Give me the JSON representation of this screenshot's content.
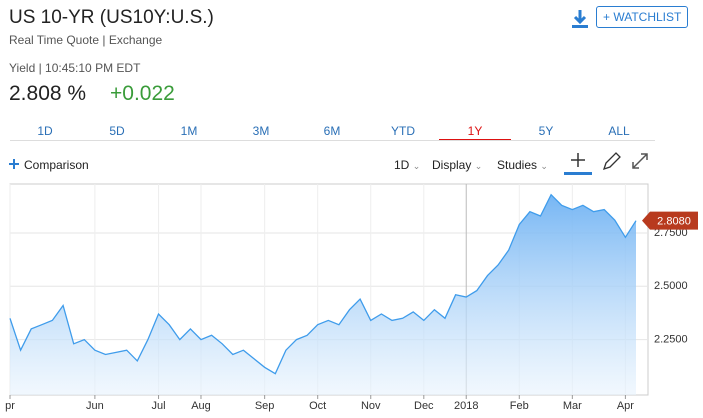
{
  "header": {
    "title": "US 10-YR (US10Y:U.S.)",
    "subtitle": "Real Time Quote | Exchange",
    "watchlist": "+ WATCHLIST"
  },
  "quote": {
    "label": "Yield | 10:45:10 PM EDT",
    "price": "2.808 %",
    "change": "+0.022"
  },
  "tabs": [
    {
      "label": "1D",
      "active": false
    },
    {
      "label": "5D",
      "active": false
    },
    {
      "label": "1M",
      "active": false
    },
    {
      "label": "3M",
      "active": false
    },
    {
      "label": "6M",
      "active": false
    },
    {
      "label": "YTD",
      "active": false
    },
    {
      "label": "1Y",
      "active": true
    },
    {
      "label": "5Y",
      "active": false
    },
    {
      "label": "ALL",
      "active": false
    }
  ],
  "toolbar": {
    "comparison": "Comparison",
    "interval": "1D",
    "display": "Display",
    "studies": "Studies"
  },
  "chart_data": {
    "type": "area",
    "color": "#3f9ceb",
    "grid": true,
    "categories": [
      "pr",
      null,
      null,
      null,
      null,
      null,
      null,
      null,
      "Jun",
      null,
      null,
      null,
      null,
      null,
      "Jul",
      null,
      null,
      null,
      "Aug",
      null,
      null,
      null,
      null,
      null,
      "Sep",
      null,
      null,
      null,
      null,
      "Oct",
      null,
      null,
      null,
      null,
      "Nov",
      null,
      null,
      null,
      null,
      "Dec",
      null,
      null,
      null,
      "2018",
      null,
      null,
      null,
      null,
      "Feb",
      null,
      null,
      null,
      null,
      "Mar",
      null,
      null,
      null,
      null,
      "Apr",
      null
    ],
    "values": [
      2.35,
      2.2,
      2.3,
      2.32,
      2.34,
      2.41,
      2.23,
      2.25,
      2.2,
      2.18,
      2.19,
      2.2,
      2.15,
      2.25,
      2.37,
      2.32,
      2.25,
      2.3,
      2.25,
      2.27,
      2.23,
      2.18,
      2.2,
      2.16,
      2.12,
      2.09,
      2.2,
      2.25,
      2.27,
      2.32,
      2.34,
      2.32,
      2.39,
      2.44,
      2.34,
      2.37,
      2.34,
      2.35,
      2.38,
      2.34,
      2.39,
      2.35,
      2.46,
      2.45,
      2.48,
      2.55,
      2.6,
      2.67,
      2.79,
      2.85,
      2.83,
      2.93,
      2.88,
      2.86,
      2.88,
      2.85,
      2.86,
      2.81,
      2.73,
      2.808
    ],
    "ylim": [
      1.99,
      2.98
    ],
    "yticks": [
      {
        "value": 2.25,
        "label": "2.2500"
      },
      {
        "value": 2.5,
        "label": "2.5000"
      },
      {
        "value": 2.75,
        "label": "2.7500"
      }
    ],
    "current": {
      "value": 2.808,
      "label": "2.8080",
      "color": "#b83a1e"
    }
  }
}
